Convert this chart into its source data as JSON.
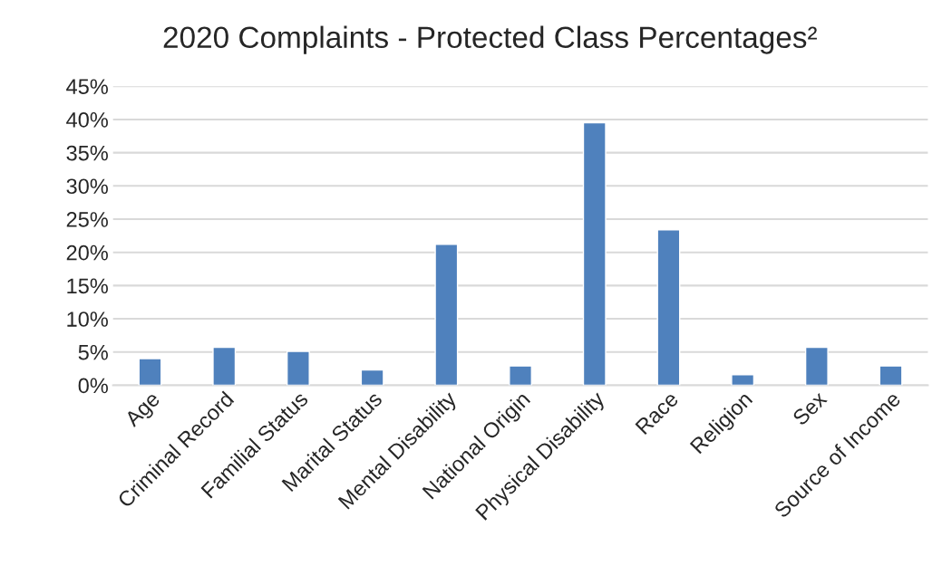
{
  "chart_data": {
    "type": "bar",
    "title": "2020 Complaints - Protected Class Percentages²",
    "categories": [
      "Age",
      "Criminal Record",
      "Familial Status",
      "Marital Status",
      "Mental Disability",
      "National Origin",
      "Physical Disability",
      "Race",
      "Religion",
      "Sex",
      "Source of Income"
    ],
    "values": [
      4.0,
      5.7,
      5.1,
      2.3,
      21.2,
      2.9,
      39.5,
      23.4,
      1.6,
      5.7,
      2.9
    ],
    "color": "#4f81bd",
    "ylim": [
      0,
      45
    ],
    "yticks": [
      {
        "value": 0,
        "label": "0%"
      },
      {
        "value": 5,
        "label": "5%"
      },
      {
        "value": 10,
        "label": "10%"
      },
      {
        "value": 15,
        "label": "15%"
      },
      {
        "value": 20,
        "label": "20%"
      },
      {
        "value": 25,
        "label": "25%"
      },
      {
        "value": 30,
        "label": "30%"
      },
      {
        "value": 35,
        "label": "35%"
      },
      {
        "value": 40,
        "label": "40%"
      },
      {
        "value": 45,
        "label": "45%"
      }
    ],
    "grid": "y"
  }
}
